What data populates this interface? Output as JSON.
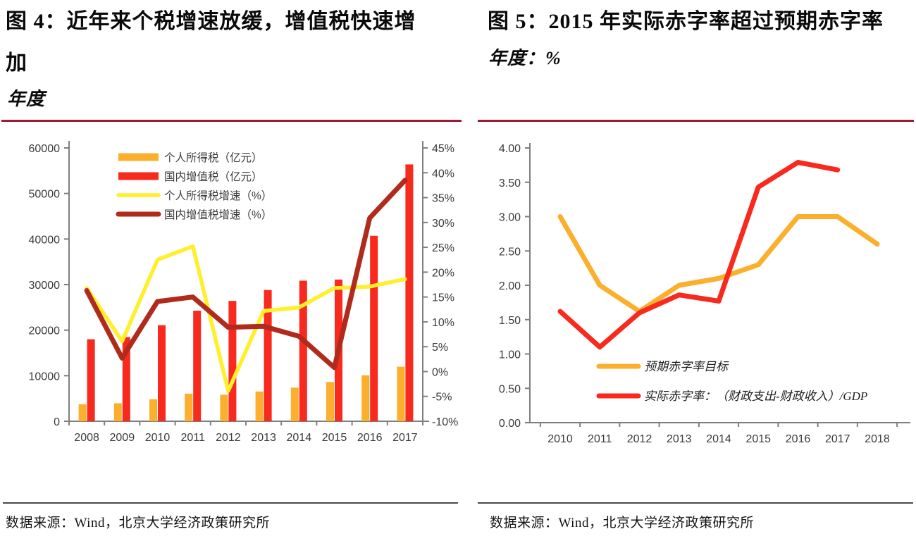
{
  "colors": {
    "separator_red": "#9E1B32",
    "footer_line": "#4a4a4a",
    "axis_gray": "#7f7f7f",
    "tick_text": "#3b3b3b",
    "orange": "#FBAF2D",
    "bright_red": "#F8291D",
    "yellow": "#FFEF2D",
    "dark_red": "#B02B1C"
  },
  "panels": {
    "left": {
      "title_line1": "图 4：近年来个税增速放缓，增值税快速增",
      "title_line2": "加",
      "subtitle": "年度",
      "source": "数据来源：Wind，北京大学经济政策研究所"
    },
    "right": {
      "title": "图 5：2015 年实际赤字率超过预期赤字率",
      "subtitle": "年度：%",
      "source": "数据来源：Wind，北京大学经济政策研究所"
    }
  },
  "chart_data": [
    {
      "type": "bar",
      "title": "图 4：近年来个税增速放缓，增值税快速增加",
      "unit_note": "年度",
      "categories": [
        "2008",
        "2009",
        "2010",
        "2011",
        "2012",
        "2013",
        "2014",
        "2015",
        "2016",
        "2017"
      ],
      "left_axis": {
        "min": 0,
        "max": 60000,
        "labels": [
          "0",
          "10000",
          "20000",
          "30000",
          "40000",
          "50000",
          "60000"
        ]
      },
      "right_axis": {
        "min": -10,
        "max": 45,
        "labels": [
          "-10%",
          "-5%",
          "0%",
          "5%",
          "10%",
          "15%",
          "20%",
          "25%",
          "30%",
          "35%",
          "40%",
          "45%"
        ]
      },
      "grid": false,
      "legend_position": "top-left-inside",
      "series": [
        {
          "key": "personal-income-tax-bars",
          "name": "个人所得税（亿元）",
          "type": "bar",
          "axis": "left",
          "color": "#FBAF2D",
          "values": [
            3722,
            3949,
            4837,
            6054,
            5820,
            6531,
            7377,
            8618,
            10089,
            11966
          ]
        },
        {
          "key": "domestic-vat-bars",
          "name": "国内增值税（亿元）",
          "type": "bar",
          "axis": "left",
          "color": "#F8291D",
          "values": [
            17997,
            18481,
            21093,
            24267,
            26416,
            28810,
            30855,
            31109,
            40712,
            56378
          ]
        },
        {
          "key": "personal-income-tax-growth-line",
          "name": "个人所得税增速（%）",
          "type": "line",
          "axis": "right",
          "color": "#FFEF2D",
          "width": 5.5,
          "values": [
            16.8,
            6.1,
            22.5,
            25.2,
            -3.9,
            12.2,
            12.9,
            16.8,
            17.1,
            18.6
          ]
        },
        {
          "key": "domestic-vat-growth-line",
          "name": "国内增值税增速（%）",
          "type": "line",
          "axis": "right",
          "color": "#B02B1C",
          "width": 7,
          "values": [
            16.3,
            2.7,
            14.1,
            15.0,
            8.9,
            9.1,
            7.1,
            0.8,
            30.9,
            38.5
          ]
        }
      ]
    },
    {
      "type": "line",
      "title": "图 5：2015 年实际赤字率超过预期赤字率",
      "unit_note": "年度：%",
      "categories": [
        "2010",
        "2011",
        "2012",
        "2013",
        "2014",
        "2015",
        "2016",
        "2017",
        "2018"
      ],
      "y_axis": {
        "min": 0,
        "max": 4,
        "labels": [
          "0.00",
          "0.50",
          "1.00",
          "1.50",
          "2.00",
          "2.50",
          "3.00",
          "3.50",
          "4.00"
        ]
      },
      "grid": false,
      "legend_position": "bottom-center-inside",
      "series": [
        {
          "key": "expected-deficit-rate-line",
          "name": "预期赤字率目标",
          "type": "line",
          "color": "#FBAF2D",
          "width": 7,
          "values": [
            3.0,
            2.0,
            1.62,
            2.0,
            2.1,
            2.3,
            3.0,
            3.0,
            2.6
          ]
        },
        {
          "key": "actual-deficit-rate-line",
          "name": "实际赤字率：（财政支出-财政收入）/GDP",
          "type": "line",
          "color": "#F8291D",
          "width": 7,
          "values": [
            1.62,
            1.1,
            1.6,
            1.86,
            1.77,
            3.43,
            3.79,
            3.68,
            null
          ]
        }
      ]
    }
  ]
}
